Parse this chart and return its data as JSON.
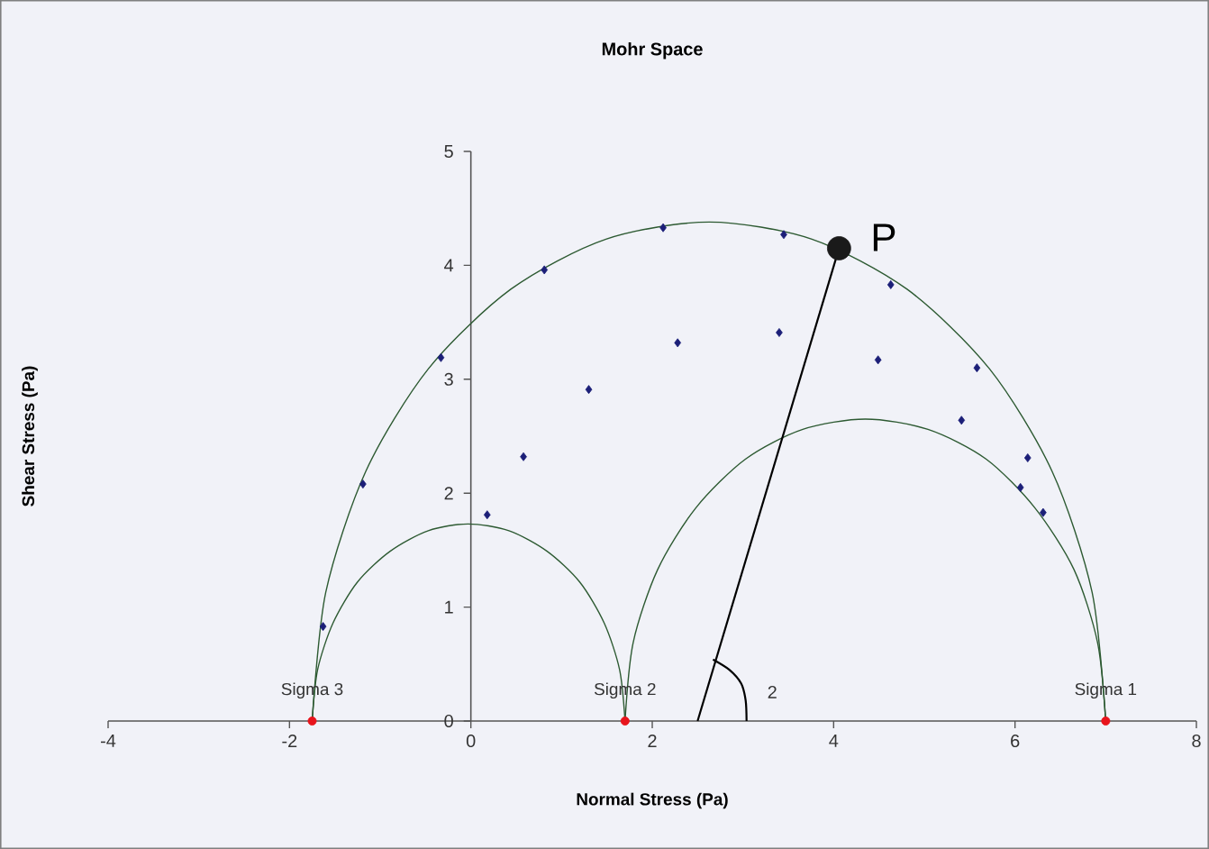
{
  "chart_data": {
    "type": "scatter",
    "title": "Mohr Space",
    "xlabel": "Normal Stress (Pa)",
    "ylabel": "Shear Stress (Pa)",
    "xlim": [
      -4,
      8
    ],
    "ylim": [
      0,
      5
    ],
    "xticks": [
      -4,
      -2,
      0,
      2,
      4,
      6,
      8
    ],
    "yticks": [
      0,
      1,
      2,
      3,
      4,
      5
    ],
    "series": [
      {
        "type": "line",
        "color": "#2d5a32",
        "marker": "none",
        "x": [
          -1.75,
          -1.6,
          -1.16,
          -0.47,
          0.44,
          1.49,
          2.63,
          3.76,
          4.81,
          5.72,
          6.41,
          6.85,
          7
        ],
        "values": [
          0,
          1.13,
          2.19,
          3.09,
          3.79,
          4.23,
          4.38,
          4.23,
          3.79,
          3.09,
          2.19,
          1.13,
          0
        ]
      },
      {
        "type": "line",
        "color": "#2d5a32",
        "marker": "none",
        "x": [
          -1.75,
          -1.69,
          -1.52,
          -1.25,
          -0.89,
          -0.47,
          -0.03,
          0.42,
          0.84,
          1.2,
          1.47,
          1.64,
          1.7
        ],
        "values": [
          0,
          0.45,
          0.86,
          1.22,
          1.49,
          1.67,
          1.73,
          1.67,
          1.49,
          1.22,
          0.86,
          0.45,
          0
        ]
      },
      {
        "type": "line",
        "color": "#2d5a32",
        "marker": "none",
        "x": [
          1.7,
          1.79,
          2.06,
          2.48,
          3.03,
          3.66,
          4.35,
          5.04,
          5.68,
          6.22,
          6.65,
          6.91,
          7
        ],
        "values": [
          0,
          0.69,
          1.33,
          1.87,
          2.3,
          2.56,
          2.65,
          2.56,
          2.3,
          1.87,
          1.33,
          0.69,
          0
        ]
      },
      {
        "type": "scatter",
        "color": "#1c1f78",
        "marker": "diamond",
        "x": [
          -1.63,
          -1.19,
          -0.33,
          0.81,
          2.12,
          0.18,
          0.58,
          1.3,
          2.28,
          3.45,
          3.4,
          4.63,
          4.49,
          5.58,
          5.41,
          6.14,
          6.06,
          6.31
        ],
        "values": [
          0.83,
          2.08,
          3.19,
          3.96,
          4.33,
          1.81,
          2.32,
          2.91,
          3.32,
          4.27,
          3.41,
          3.83,
          3.17,
          3.1,
          2.64,
          2.31,
          2.05,
          1.83
        ]
      },
      {
        "type": "line",
        "color": "#000000",
        "marker": "none",
        "x": [
          2.5,
          4.06
        ],
        "values": [
          0,
          4.15
        ]
      },
      {
        "type": "line",
        "color": "#000000",
        "marker": "none",
        "x": [
          2.67,
          2.85,
          2.98,
          3.03,
          3.04
        ],
        "values": [
          0.54,
          0.45,
          0.33,
          0.18,
          0
        ]
      },
      {
        "type": "scatter",
        "name": "P",
        "color": "#1a1a1a",
        "marker": "circle",
        "x": [
          4.06
        ],
        "values": [
          4.15
        ]
      },
      {
        "type": "scatter",
        "color": "#e8141c",
        "marker": "circle",
        "x": [
          -1.75,
          1.7,
          7
        ],
        "values": [
          0,
          0,
          0
        ]
      }
    ],
    "annotations": [
      {
        "text": "Sigma 3",
        "x": -1.75,
        "y": 0
      },
      {
        "text": "Sigma 2",
        "x": 1.7,
        "y": 0
      },
      {
        "text": "Sigma 1",
        "x": 7,
        "y": 0
      },
      "2"
    ]
  }
}
